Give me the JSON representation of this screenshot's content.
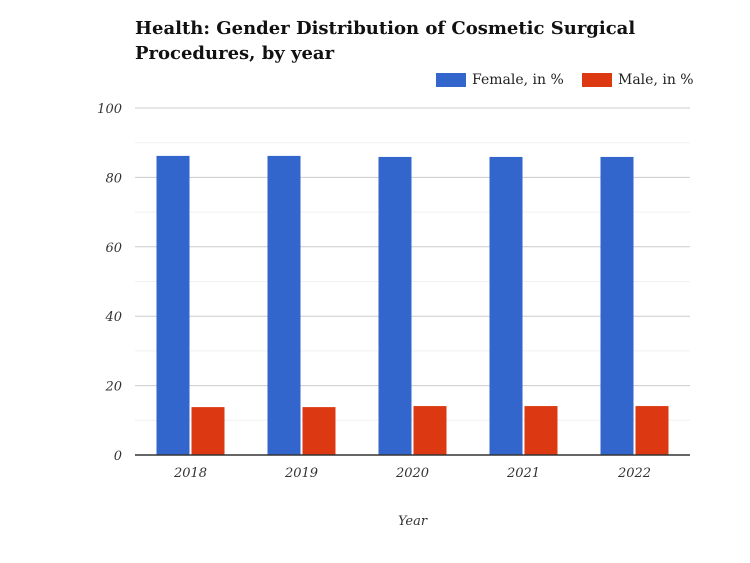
{
  "chart_data": {
    "type": "bar",
    "title": "Health: Gender Distribution of Cosmetic Surgical Procedures, by year",
    "xlabel": "Year",
    "ylabel": "",
    "categories": [
      "2018",
      "2019",
      "2020",
      "2021",
      "2022"
    ],
    "series": [
      {
        "name": "Female, in %",
        "color": "#3366cc",
        "values": [
          86.2,
          86.2,
          85.9,
          85.9,
          85.9
        ]
      },
      {
        "name": "Male, in %",
        "color": "#dc3912",
        "values": [
          13.8,
          13.8,
          14.1,
          14.1,
          14.1
        ]
      }
    ],
    "ylim": [
      0,
      100
    ],
    "yticks": [
      0,
      20,
      40,
      60,
      80,
      100
    ],
    "grid": true,
    "legend": "top-right"
  }
}
